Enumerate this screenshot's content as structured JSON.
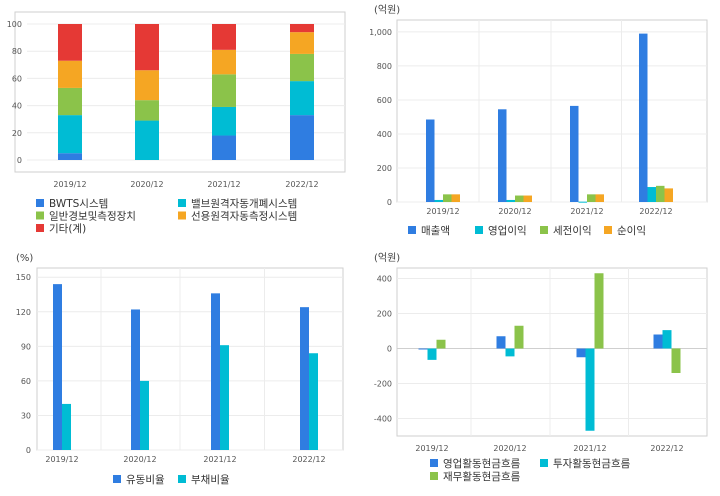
{
  "colors": {
    "blue": "#2f7de1",
    "cyan": "#00bcd4",
    "green": "#8bc34a",
    "orange": "#f5a623",
    "red": "#e53935"
  },
  "chart_data": [
    {
      "id": "product-mix",
      "type": "bar",
      "stacked": true,
      "unit_label": "",
      "categories": [
        "2019/12",
        "2020/12",
        "2021/12",
        "2022/12"
      ],
      "yticks": [
        0,
        20,
        40,
        60,
        80,
        100
      ],
      "ylim": [
        0,
        100
      ],
      "series": [
        {
          "name": "BWTS시스템",
          "color": "#2f7de1",
          "values": [
            5,
            0,
            18,
            33
          ]
        },
        {
          "name": "밸브원격자동개폐시스템",
          "color": "#00bcd4",
          "values": [
            28,
            29,
            21,
            25
          ]
        },
        {
          "name": "일반경보및측정장치",
          "color": "#8bc34a",
          "values": [
            20,
            15,
            24,
            20
          ]
        },
        {
          "name": "선용원격자동측정시스템",
          "color": "#f5a623",
          "values": [
            20,
            22,
            18,
            16
          ]
        },
        {
          "name": "기타(계)",
          "color": "#e53935",
          "values": [
            27,
            34,
            19,
            6
          ]
        }
      ]
    },
    {
      "id": "income",
      "type": "bar",
      "unit_label": "(억원)",
      "categories": [
        "2019/12",
        "2020/12",
        "2021/12",
        "2022/12"
      ],
      "yticks": [
        0,
        200,
        400,
        600,
        800,
        1000
      ],
      "ytick_labels": [
        "0",
        "200",
        "400",
        "600",
        "800",
        "1,000"
      ],
      "ylim": [
        0,
        1070
      ],
      "series": [
        {
          "name": "매출액",
          "color": "#2f7de1",
          "values": [
            485,
            545,
            565,
            990
          ]
        },
        {
          "name": "영업이익",
          "color": "#00bcd4",
          "values": [
            12,
            12,
            2,
            88
          ]
        },
        {
          "name": "세전이익",
          "color": "#8bc34a",
          "values": [
            45,
            38,
            45,
            95
          ]
        },
        {
          "name": "순이익",
          "color": "#f5a623",
          "values": [
            45,
            38,
            45,
            80
          ]
        }
      ]
    },
    {
      "id": "ratios",
      "type": "bar",
      "unit_label": "(%)",
      "categories": [
        "2019/12",
        "2020/12",
        "2021/12",
        "2022/12"
      ],
      "yticks": [
        0,
        30,
        60,
        90,
        120,
        150
      ],
      "ylim": [
        0,
        158
      ],
      "series": [
        {
          "name": "유동비율",
          "color": "#2f7de1",
          "values": [
            144,
            122,
            136,
            124
          ]
        },
        {
          "name": "부채비율",
          "color": "#00bcd4",
          "values": [
            40,
            60,
            91,
            84
          ]
        }
      ]
    },
    {
      "id": "cashflow",
      "type": "bar",
      "unit_label": "(억원)",
      "categories": [
        "2019/12",
        "2020/12",
        "2021/12",
        "2022/12"
      ],
      "yticks": [
        -400,
        -200,
        0,
        200,
        400
      ],
      "ylim": [
        -500,
        460
      ],
      "series": [
        {
          "name": "영업활동현금흐름",
          "color": "#2f7de1",
          "values": [
            -5,
            70,
            -50,
            80
          ]
        },
        {
          "name": "투자활동현금흐름",
          "color": "#00bcd4",
          "values": [
            -65,
            -45,
            -470,
            105
          ]
        },
        {
          "name": "재무활동현금흐름",
          "color": "#8bc34a",
          "values": [
            50,
            130,
            430,
            -140
          ]
        }
      ]
    }
  ]
}
